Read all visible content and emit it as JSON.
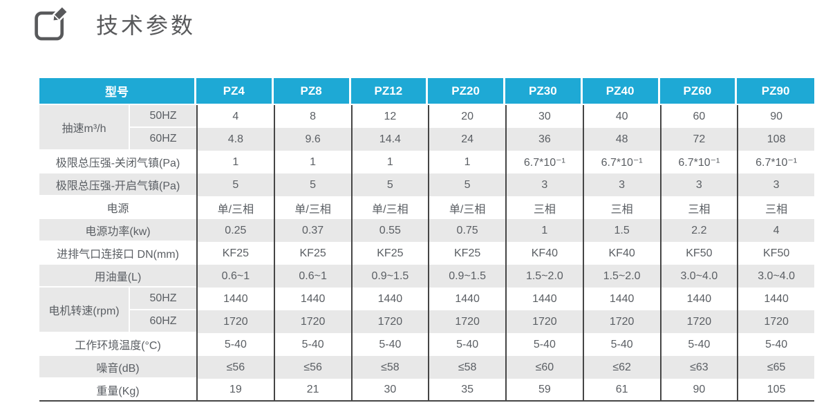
{
  "title": {
    "text": "技术参数",
    "icon": "edit-pencil-icon"
  },
  "colors": {
    "header_bg": "#1ea9d5",
    "stripe_gray": "#e8e8e8",
    "stripe_white": "#ffffff",
    "grid_dark": "#454545",
    "body_text": "#5a5e63",
    "header_text": "#ffffff",
    "title_text": "#58595b"
  },
  "table": {
    "model_header": "型号",
    "models": [
      "PZ4",
      "PZ8",
      "PZ12",
      "PZ20",
      "PZ30",
      "PZ40",
      "PZ60",
      "PZ90"
    ],
    "rows": [
      {
        "label": "抽速m³/h",
        "rowspan": 2,
        "sub": "50HZ",
        "values": [
          "4",
          "8",
          "12",
          "20",
          "30",
          "40",
          "60",
          "90"
        ]
      },
      {
        "sub": "60HZ",
        "values": [
          "4.8",
          "9.6",
          "14.4",
          "24",
          "36",
          "48",
          "72",
          "108"
        ]
      },
      {
        "label": "极限总压强-关闭气镇(Pa)",
        "values": [
          "1",
          "1",
          "1",
          "1",
          "6.7*10⁻¹",
          "6.7*10⁻¹",
          "6.7*10⁻¹",
          "6.7*10⁻¹"
        ]
      },
      {
        "label": "极限总压强-开启气镇(Pa)",
        "values": [
          "5",
          "5",
          "5",
          "5",
          "3",
          "3",
          "3",
          "3"
        ]
      },
      {
        "label": "电源",
        "values": [
          "单/三相",
          "单/三相",
          "单/三相",
          "单/三相",
          "三相",
          "三相",
          "三相",
          "三相"
        ]
      },
      {
        "label": "电源功率(kw)",
        "values": [
          "0.25",
          "0.37",
          "0.55",
          "0.75",
          "1",
          "1.5",
          "2.2",
          "4"
        ]
      },
      {
        "label": "进排气口连接口 DN(mm)",
        "values": [
          "KF25",
          "KF25",
          "KF25",
          "KF25",
          "KF40",
          "KF40",
          "KF50",
          "KF50"
        ]
      },
      {
        "label": "用油量(L)",
        "values": [
          "0.6~1",
          "0.6~1",
          "0.9~1.5",
          "0.9~1.5",
          "1.5~2.0",
          "1.5~2.0",
          "3.0~4.0",
          "3.0~4.0"
        ]
      },
      {
        "label": "电机转速(rpm)",
        "rowspan": 2,
        "sub": "50HZ",
        "values": [
          "1440",
          "1440",
          "1440",
          "1440",
          "1440",
          "1440",
          "1440",
          "1440"
        ]
      },
      {
        "sub": "60HZ",
        "values": [
          "1720",
          "1720",
          "1720",
          "1720",
          "1720",
          "1720",
          "1720",
          "1720"
        ]
      },
      {
        "label": "工作环境温度(°C)",
        "values": [
          "5-40",
          "5-40",
          "5-40",
          "5-40",
          "5-40",
          "5-40",
          "5-40",
          "5-40"
        ]
      },
      {
        "label": "噪音(dB)",
        "values": [
          "≤56",
          "≤56",
          "≤58",
          "≤58",
          "≤60",
          "≤62",
          "≤63",
          "≤65"
        ]
      },
      {
        "label": "重量(Kg)",
        "values": [
          "19",
          "21",
          "30",
          "35",
          "59",
          "61",
          "90",
          "105"
        ]
      }
    ]
  }
}
